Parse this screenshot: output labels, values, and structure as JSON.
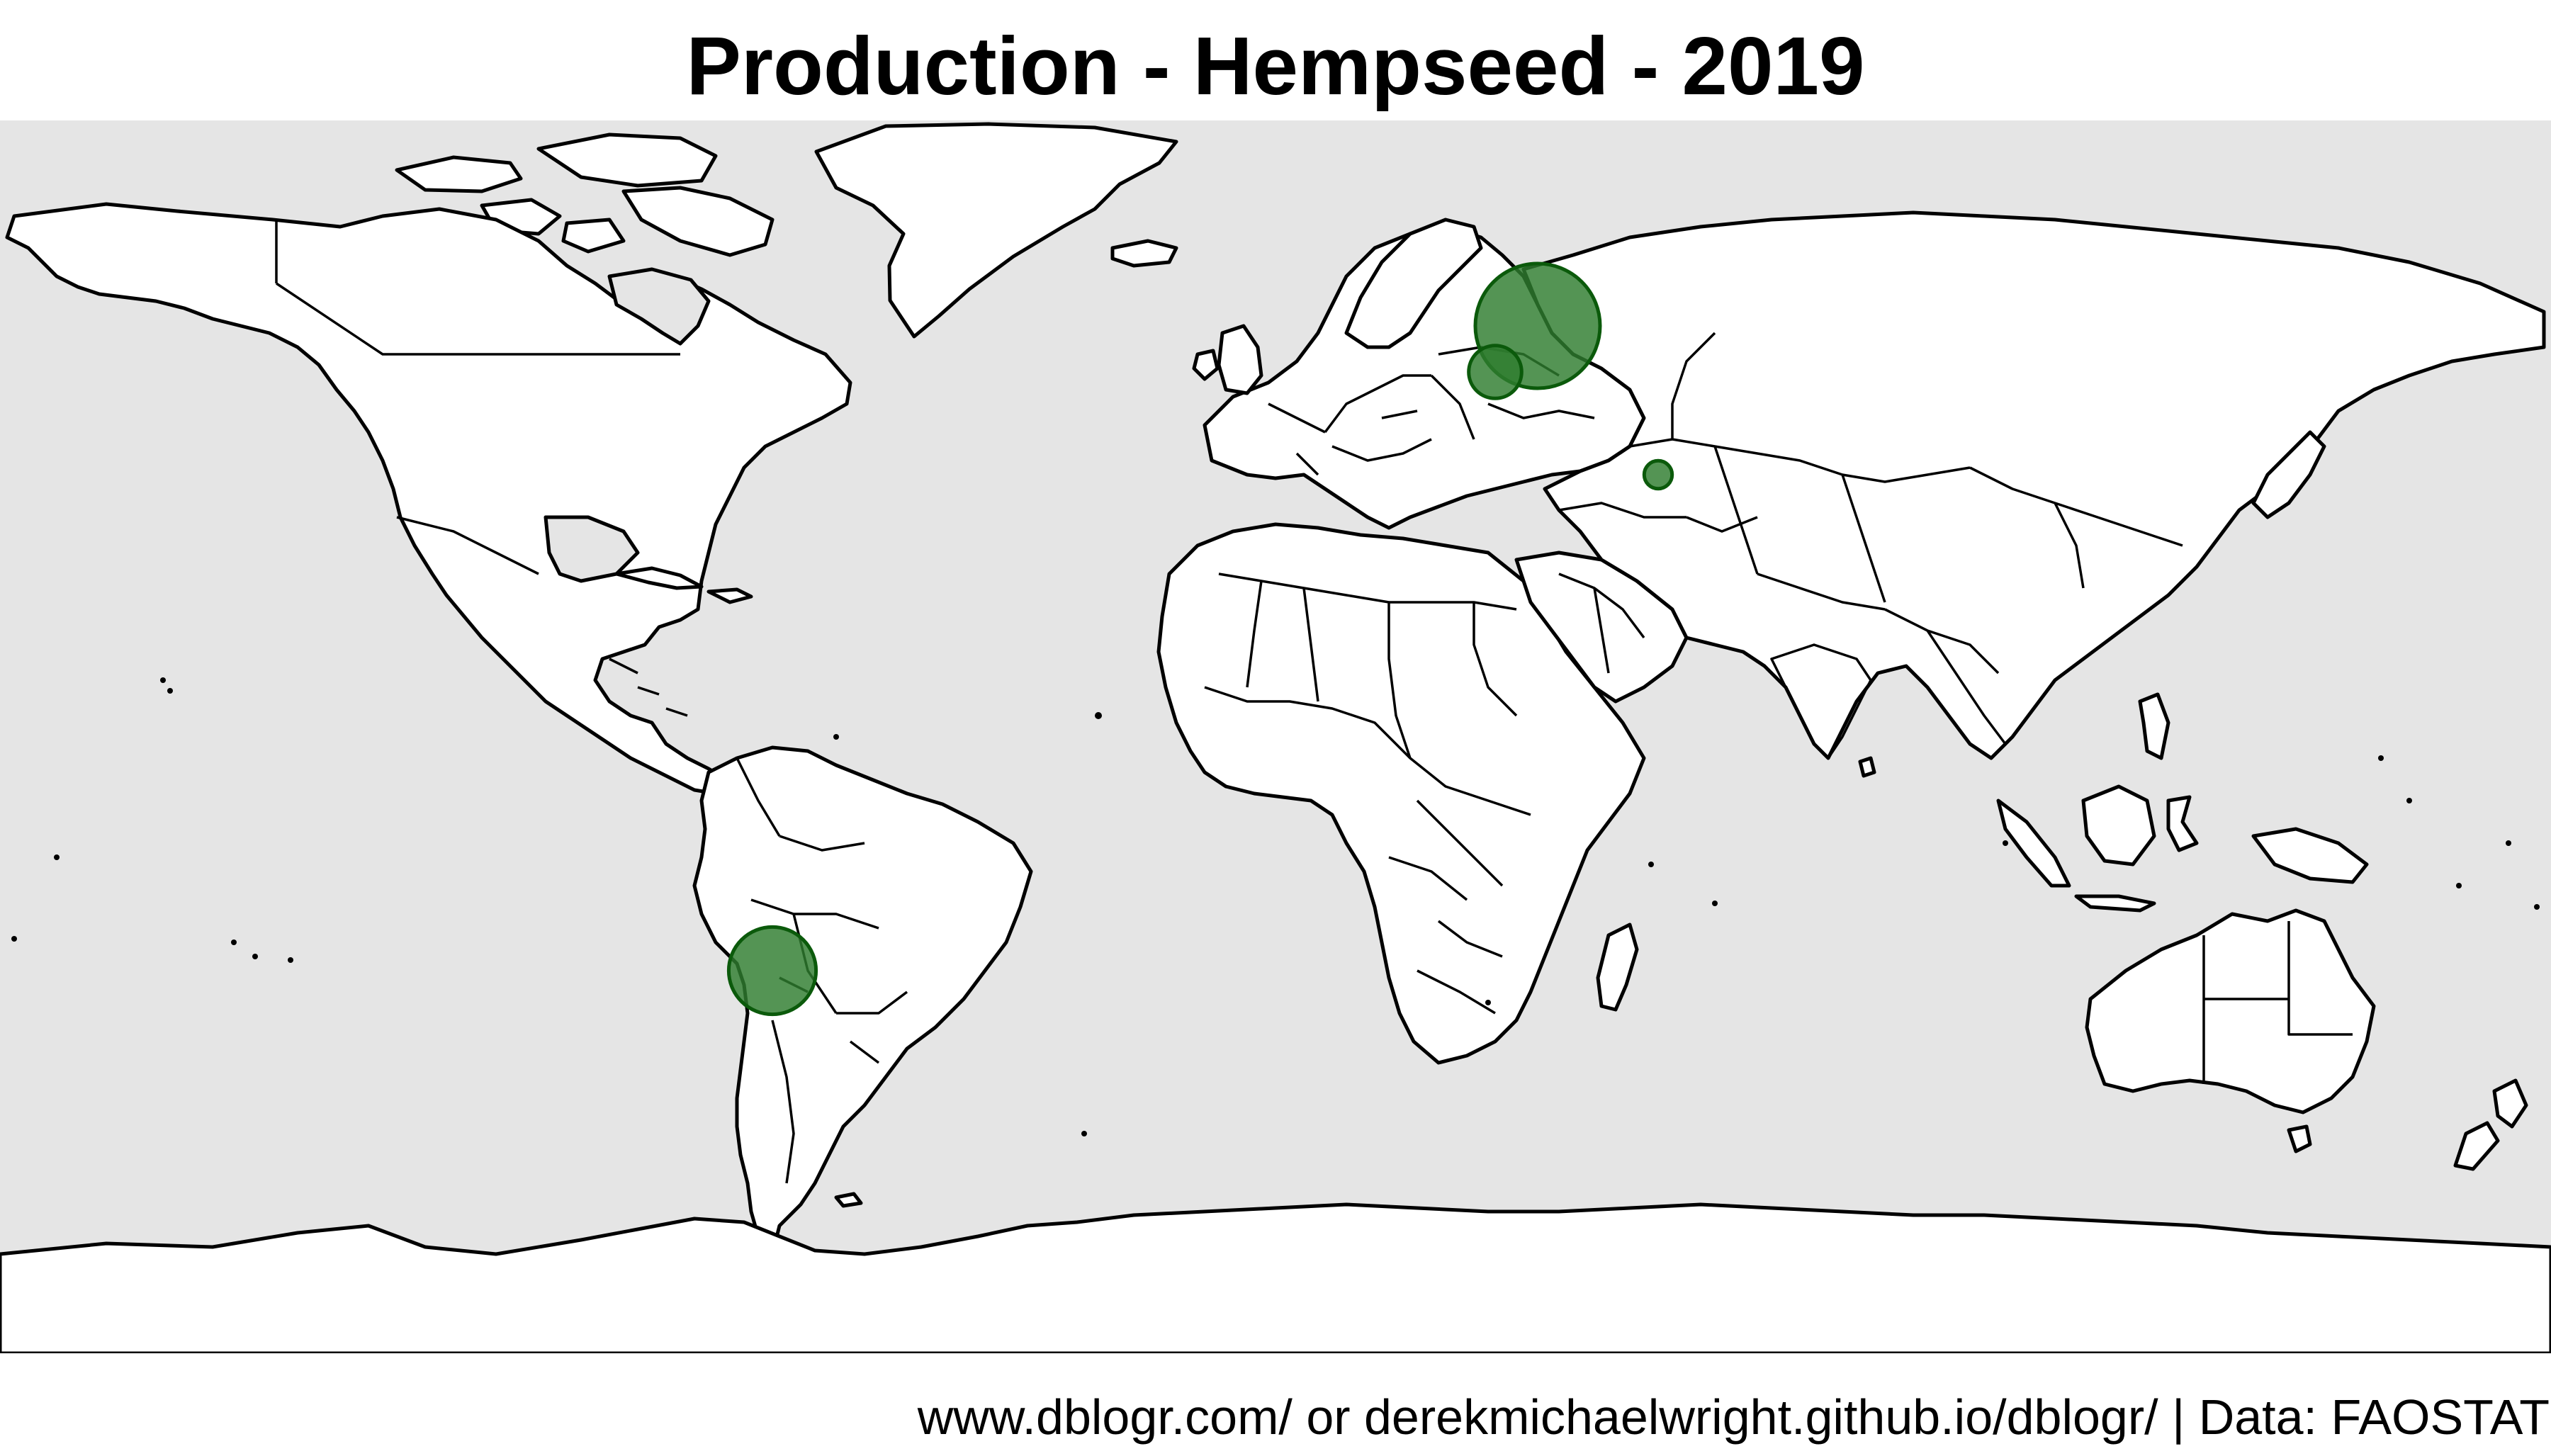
{
  "title": "Production - Hempseed - 2019",
  "caption": "www.dblogr.com/ or derekmichaelwright.github.io/dblogr/ | Data: FAOSTAT",
  "map": {
    "projection": "equirectangular",
    "ocean_color": "#e5e5e5",
    "land_color": "#ffffff",
    "border_color": "#000000"
  },
  "bubble_style": {
    "fill": "#2e7d2e",
    "stroke": "#0b5a0b",
    "opacity": 0.82
  },
  "chart_data": {
    "type": "bubble-map",
    "title": "Production - Hempseed - 2019",
    "size_unit": "relative",
    "points": [
      {
        "lon": 37.0,
        "lat": 55.0,
        "value": 100
      },
      {
        "lon": 31.0,
        "lat": 48.5,
        "value": 18
      },
      {
        "lon": 54.0,
        "lat": 34.0,
        "value": 5
      },
      {
        "lon": -71.0,
        "lat": -36.0,
        "value": 49
      }
    ]
  }
}
